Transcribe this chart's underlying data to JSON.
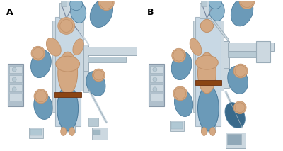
{
  "title": "",
  "panel_A_label": "A",
  "panel_B_label": "B",
  "background_color": "#ffffff",
  "label_fontsize": 9,
  "label_fontweight": "bold",
  "fig_width": 4.0,
  "fig_height": 2.13,
  "dpi": 100,
  "skin_color": "#d4a882",
  "skin_dark": "#c09068",
  "blue_scrubs": "#6b9ab8",
  "blue_dark": "#4a7a9b",
  "blue_light": "#8ab4cc",
  "blue_deep": "#3a6a8b",
  "equipment_gray": "#9aacb8",
  "equipment_light": "#b8cad4",
  "equipment_pale": "#ccd8e0",
  "table_color": "#c8d8e4",
  "table_dark": "#a8b8c4",
  "strap_color": "#8b4513",
  "strap_dark": "#6b3010",
  "cart_color": "#b0c0cc",
  "cart_detail": "#8898a8",
  "white": "#f0f4f6",
  "line_gray": "#7888a0"
}
